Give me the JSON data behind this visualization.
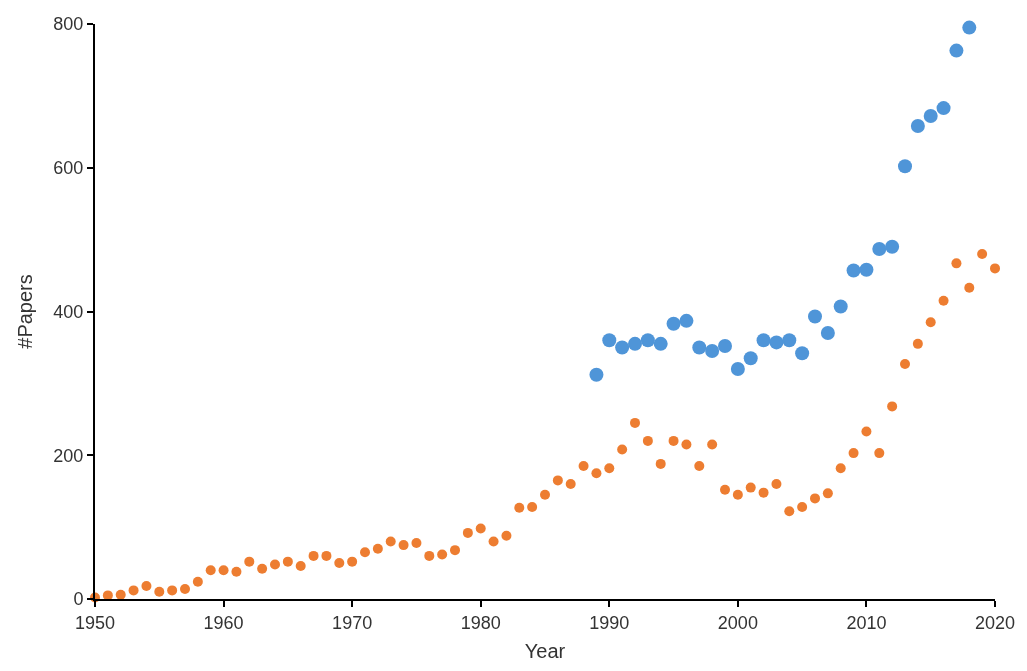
{
  "chart_data": {
    "type": "scatter",
    "xlabel": "Year",
    "ylabel": "#Papers",
    "xlim": [
      1950,
      2020
    ],
    "xticks": [
      1950,
      1960,
      1970,
      1980,
      1990,
      2000,
      2010,
      2020
    ],
    "ylim": [
      0,
      800
    ],
    "yticks": [
      0,
      200,
      400,
      600,
      800
    ],
    "marker": "circle",
    "series": [
      {
        "color": "#4f95d8",
        "x": [
          1989,
          1990,
          1991,
          1992,
          1993,
          1994,
          1995,
          1996,
          1997,
          1998,
          1999,
          2000,
          2001,
          2002,
          2003,
          2004,
          2005,
          2006,
          2007,
          2008,
          2009,
          2010,
          2011,
          2012,
          2013,
          2014,
          2015,
          2016,
          2017,
          2018
        ],
        "values": [
          312,
          360,
          350,
          355,
          360,
          355,
          383,
          387,
          350,
          345,
          352,
          320,
          335,
          360,
          357,
          360,
          342,
          393,
          370,
          407,
          457,
          458,
          487,
          490,
          602,
          658,
          672,
          683,
          763,
          795
        ]
      },
      {
        "color": "#ed7d31",
        "x": [
          1950,
          1951,
          1952,
          1953,
          1954,
          1955,
          1956,
          1957,
          1958,
          1959,
          1960,
          1961,
          1962,
          1963,
          1964,
          1965,
          1966,
          1967,
          1968,
          1969,
          1970,
          1971,
          1972,
          1973,
          1974,
          1975,
          1976,
          1977,
          1978,
          1979,
          1980,
          1981,
          1982,
          1983,
          1984,
          1985,
          1986,
          1987,
          1988,
          1989,
          1990,
          1991,
          1992,
          1993,
          1994,
          1995,
          1996,
          1997,
          1998,
          1999,
          2000,
          2001,
          2002,
          2003,
          2004,
          2005,
          2006,
          2007,
          2008,
          2009,
          2010,
          2011,
          2012,
          2013,
          2014,
          2015,
          2016,
          2017,
          2018,
          2019,
          2020
        ],
        "values": [
          2,
          5,
          6,
          12,
          18,
          10,
          12,
          14,
          24,
          40,
          40,
          38,
          52,
          42,
          48,
          52,
          46,
          60,
          60,
          50,
          52,
          65,
          70,
          80,
          75,
          78,
          60,
          62,
          68,
          92,
          98,
          80,
          88,
          127,
          128,
          145,
          165,
          160,
          185,
          175,
          182,
          208,
          245,
          220,
          188,
          220,
          215,
          185,
          215,
          152,
          145,
          155,
          148,
          160,
          122,
          128,
          140,
          147,
          182,
          203,
          233,
          203,
          268,
          327,
          355,
          385,
          415,
          467,
          433,
          480,
          460
        ]
      }
    ]
  }
}
